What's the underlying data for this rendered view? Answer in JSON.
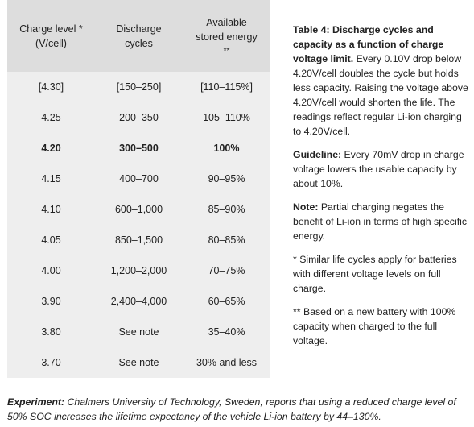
{
  "table": {
    "headers": [
      {
        "line1": "Charge level *",
        "line2": "(V/cell)",
        "line3": ""
      },
      {
        "line1": "Discharge",
        "line2": "cycles",
        "line3": ""
      },
      {
        "line1": "Available",
        "line2": "stored energy",
        "line3": "**"
      }
    ],
    "rows": [
      {
        "level": "[4.30]",
        "cycles": "[150–250]",
        "energy": "[110–115%]",
        "bold": false
      },
      {
        "level": "4.25",
        "cycles": "200–350",
        "energy": "105–110%",
        "bold": false
      },
      {
        "level": "4.20",
        "cycles": "300–500",
        "energy": "100%",
        "bold": true
      },
      {
        "level": "4.15",
        "cycles": "400–700",
        "energy": "90–95%",
        "bold": false
      },
      {
        "level": "4.10",
        "cycles": "600–1,000",
        "energy": "85–90%",
        "bold": false
      },
      {
        "level": "4.05",
        "cycles": "850–1,500",
        "energy": "80–85%",
        "bold": false
      },
      {
        "level": "4.00",
        "cycles": "1,200–2,000",
        "energy": "70–75%",
        "bold": false
      },
      {
        "level": "3.90",
        "cycles": "2,400–4,000",
        "energy": "60–65%",
        "bold": false
      },
      {
        "level": "3.80",
        "cycles": "See note",
        "energy": "35–40%",
        "bold": false
      },
      {
        "level": "3.70",
        "cycles": "See note",
        "energy": "30% and less",
        "bold": false
      }
    ]
  },
  "caption": {
    "title": "Table 4: Discharge cycles and capacity as a function of charge voltage limit.",
    "body": " Every 0.10V drop below 4.20V/cell doubles the cycle but holds less capacity. Raising the voltage above 4.20V/cell would shorten the life. The readings reflect regular Li-ion charging to 4.20V/cell."
  },
  "guideline": {
    "label": "Guideline:",
    "body": " Every 70mV drop in charge voltage lowers the usable capacity by about 10%."
  },
  "note": {
    "label": "Note:",
    "body": " Partial charging negates the benefit of Li-ion in terms of high specific energy."
  },
  "footnote_1": "*  Similar life cycles apply for batteries with different voltage levels on full charge.",
  "footnote_2": "** Based on a new battery with 100% capacity when charged to the full voltage.",
  "experiment": {
    "label": "Experiment:",
    "body": " Chalmers University of Technology, Sweden, reports that using a reduced charge level of 50% SOC increases the lifetime expectancy of the vehicle Li-ion battery by 44–130%."
  }
}
